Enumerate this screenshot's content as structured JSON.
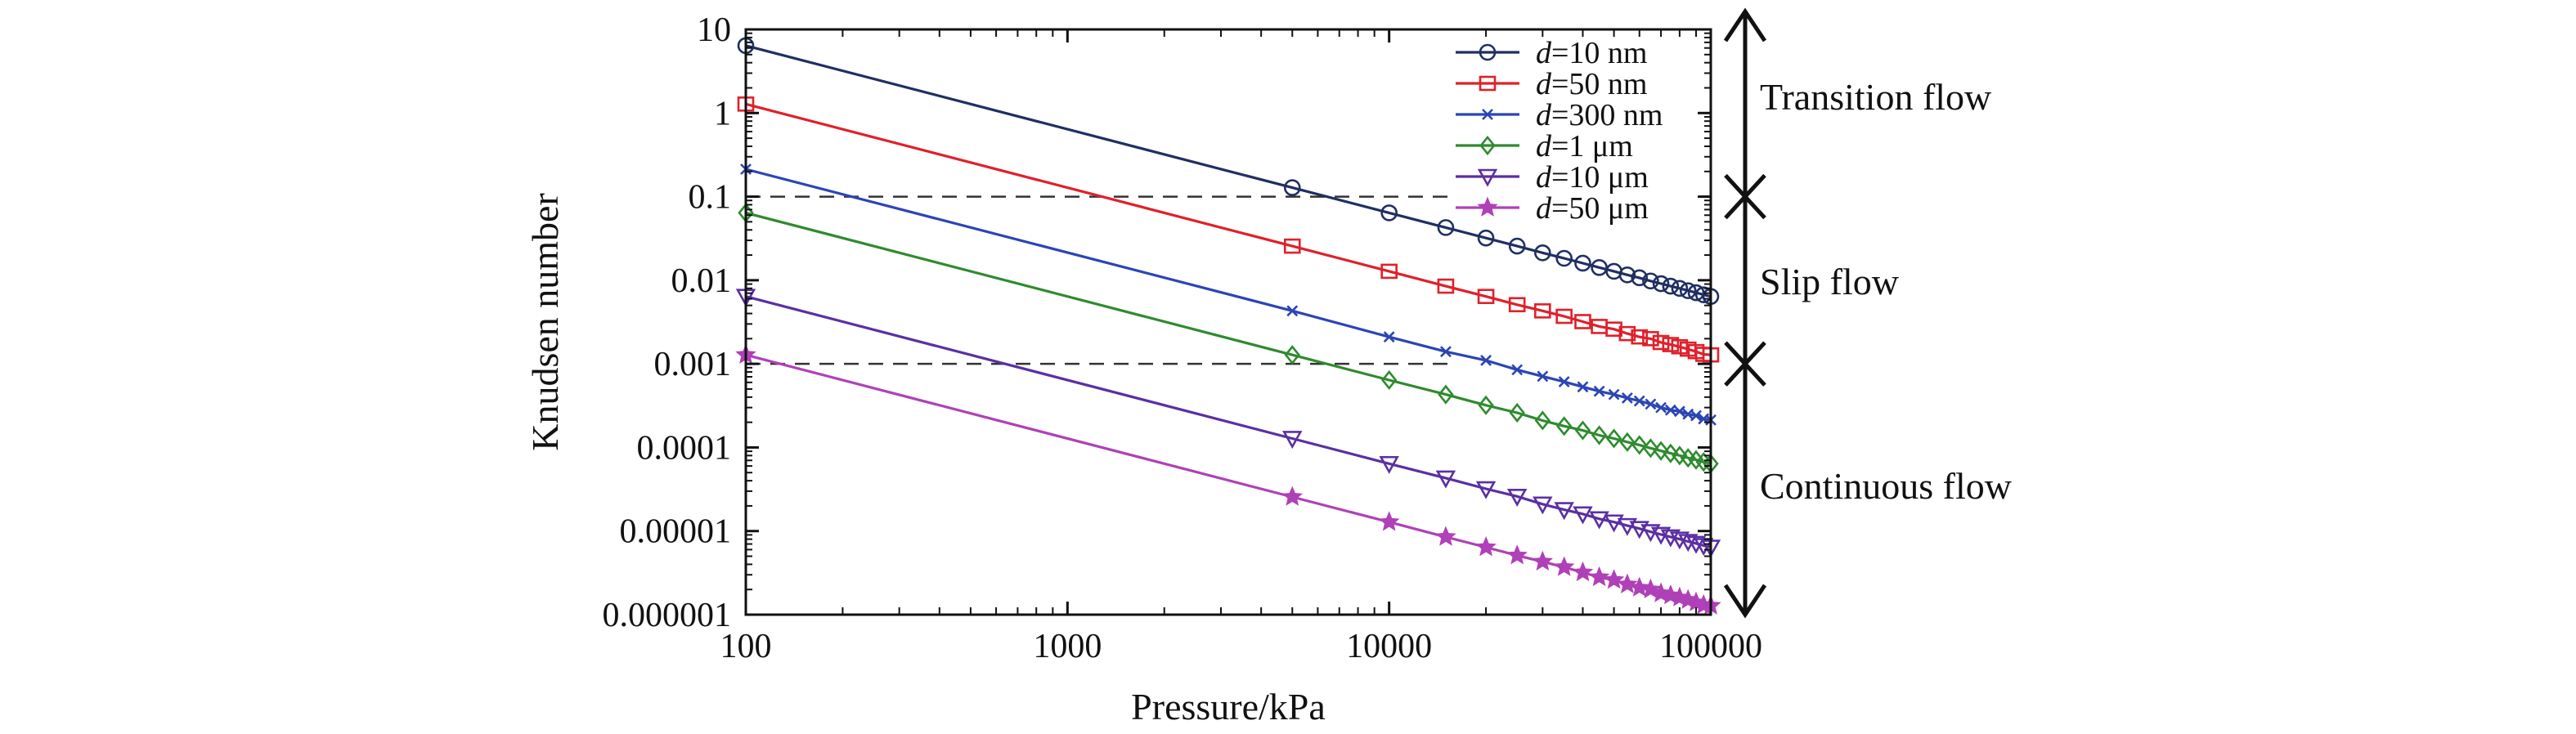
{
  "chart_data": {
    "type": "line",
    "xlabel": "Pressure/kPa",
    "ylabel": "Knudsen number",
    "xscale": "log",
    "yscale": "log",
    "xlim": [
      100,
      100000
    ],
    "ylim": [
      1e-06,
      10
    ],
    "x_ticks": [
      "100",
      "1000",
      "10000",
      "100000"
    ],
    "y_ticks": [
      "10",
      "1",
      "0.1",
      "0.01",
      "0.001",
      "0.0001",
      "0.00001",
      "0.000001"
    ],
    "reference_lines": [
      0.1,
      0.001
    ],
    "legend_position": "top-right",
    "series": [
      {
        "name_var": "d",
        "name_rest": "=10 nm",
        "color": "#1f2f63",
        "marker": "circle",
        "x": [
          100,
          5000,
          10000,
          15000,
          20000,
          25000,
          30000,
          35000,
          40000,
          45000,
          50000,
          55000,
          60000,
          65000,
          70000,
          75000,
          80000,
          85000,
          90000,
          95000,
          100000
        ],
        "y": [
          6.4,
          0.128,
          0.064,
          0.0427,
          0.032,
          0.0256,
          0.0213,
          0.0183,
          0.016,
          0.0142,
          0.0128,
          0.0116,
          0.0107,
          0.0098,
          0.0091,
          0.0085,
          0.008,
          0.0075,
          0.0071,
          0.0067,
          0.0064
        ]
      },
      {
        "name_var": "d",
        "name_rest": "=50 nm",
        "color": "#e0202a",
        "marker": "square",
        "x": [
          100,
          5000,
          10000,
          15000,
          20000,
          25000,
          30000,
          35000,
          40000,
          45000,
          50000,
          55000,
          60000,
          65000,
          70000,
          75000,
          80000,
          85000,
          90000,
          95000,
          100000
        ],
        "y": [
          1.28,
          0.0256,
          0.0128,
          0.0085,
          0.0064,
          0.0051,
          0.0043,
          0.0037,
          0.0032,
          0.0028,
          0.0026,
          0.0023,
          0.0021,
          0.002,
          0.0018,
          0.0017,
          0.0016,
          0.0015,
          0.0014,
          0.0013,
          0.00128
        ]
      },
      {
        "name_var": "d",
        "name_rest": "=300 nm",
        "color": "#2b45b5",
        "marker": "x",
        "x": [
          100,
          5000,
          10000,
          15000,
          20000,
          25000,
          30000,
          35000,
          40000,
          45000,
          50000,
          55000,
          60000,
          65000,
          70000,
          75000,
          80000,
          85000,
          90000,
          95000,
          100000
        ],
        "y": [
          0.213,
          0.0043,
          0.0021,
          0.0014,
          0.0011,
          0.00085,
          0.00071,
          0.00061,
          0.00053,
          0.00047,
          0.00043,
          0.00039,
          0.00036,
          0.00033,
          0.0003,
          0.00028,
          0.00027,
          0.00025,
          0.00024,
          0.00022,
          0.000213
        ]
      },
      {
        "name_var": "d",
        "name_rest": "=1 μm",
        "color": "#2e8b2e",
        "marker": "diamond",
        "x": [
          100,
          5000,
          10000,
          15000,
          20000,
          25000,
          30000,
          35000,
          40000,
          45000,
          50000,
          55000,
          60000,
          65000,
          70000,
          75000,
          80000,
          85000,
          90000,
          95000,
          100000
        ],
        "y": [
          0.064,
          0.00128,
          0.00064,
          0.00043,
          0.00032,
          0.00026,
          0.00021,
          0.00018,
          0.00016,
          0.00014,
          0.000128,
          0.000116,
          0.000107,
          9.8e-05,
          9.1e-05,
          8.5e-05,
          8e-05,
          7.5e-05,
          7.1e-05,
          6.7e-05,
          6.4e-05
        ]
      },
      {
        "name_var": "d",
        "name_rest": "=10 μm",
        "color": "#5b2fa3",
        "marker": "triangle-down",
        "x": [
          100,
          5000,
          10000,
          15000,
          20000,
          25000,
          30000,
          35000,
          40000,
          45000,
          50000,
          55000,
          60000,
          65000,
          70000,
          75000,
          80000,
          85000,
          90000,
          95000,
          100000
        ],
        "y": [
          0.0064,
          0.000128,
          6.4e-05,
          4.3e-05,
          3.2e-05,
          2.6e-05,
          2.1e-05,
          1.8e-05,
          1.6e-05,
          1.4e-05,
          1.28e-05,
          1.16e-05,
          1.07e-05,
          9.8e-06,
          9.1e-06,
          8.5e-06,
          8e-06,
          7.5e-06,
          7.1e-06,
          6.7e-06,
          6.4e-06
        ]
      },
      {
        "name_var": "d",
        "name_rest": "=50 μm",
        "color": "#b040b8",
        "marker": "star",
        "x": [
          100,
          5000,
          10000,
          15000,
          20000,
          25000,
          30000,
          35000,
          40000,
          45000,
          50000,
          55000,
          60000,
          65000,
          70000,
          75000,
          80000,
          85000,
          90000,
          95000,
          100000
        ],
        "y": [
          0.00128,
          2.56e-05,
          1.28e-05,
          8.5e-06,
          6.4e-06,
          5.1e-06,
          4.3e-06,
          3.7e-06,
          3.2e-06,
          2.8e-06,
          2.6e-06,
          2.3e-06,
          2.1e-06,
          2e-06,
          1.8e-06,
          1.7e-06,
          1.6e-06,
          1.5e-06,
          1.4e-06,
          1.3e-06,
          1.28e-06
        ]
      }
    ],
    "regions": [
      {
        "label": "Transition flow",
        "from": 10,
        "to": 0.1
      },
      {
        "label": "Slip flow",
        "from": 0.1,
        "to": 0.001
      },
      {
        "label": "Continuous flow",
        "from": 0.001,
        "to": 1e-06
      }
    ]
  }
}
